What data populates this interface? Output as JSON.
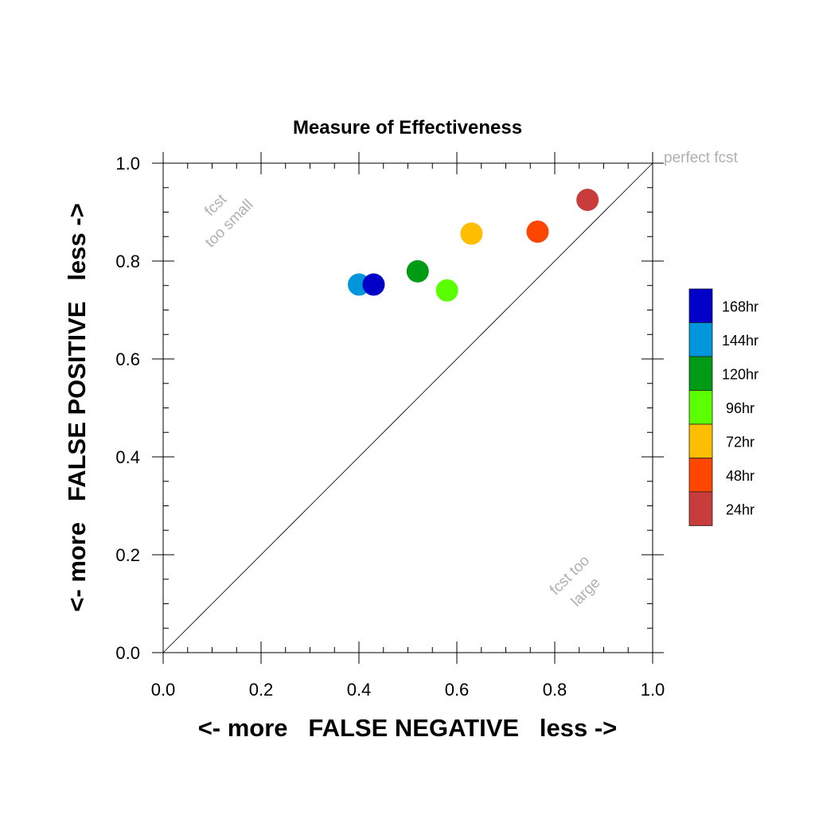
{
  "chart_data": {
    "type": "scatter",
    "title": "Measure of Effectiveness",
    "xlabel": "<- more   FALSE NEGATIVE   less ->",
    "ylabel": "<- more   FALSE POSITIVE   less ->",
    "xlim": [
      0.0,
      1.0
    ],
    "ylim": [
      0.0,
      1.0
    ],
    "x_ticks": [
      "0.0",
      "0.2",
      "0.4",
      "0.6",
      "0.8",
      "1.0"
    ],
    "y_ticks": [
      "0.0",
      "0.2",
      "0.4",
      "0.6",
      "0.8",
      "1.0"
    ],
    "grid": false,
    "diagonal_line": true,
    "annotations": {
      "top_left": [
        "fcst",
        "too small"
      ],
      "bottom_right": [
        "fcst too",
        "large"
      ],
      "top_right": "perfect fcst"
    },
    "legend_position": "right",
    "points": [
      {
        "label": "24hr",
        "x": 0.867,
        "y": 0.925,
        "color": "#c83c3c"
      },
      {
        "label": "48hr",
        "x": 0.765,
        "y": 0.86,
        "color": "#ff4600"
      },
      {
        "label": "72hr",
        "x": 0.63,
        "y": 0.856,
        "color": "#ffbe00"
      },
      {
        "label": "96hr",
        "x": 0.58,
        "y": 0.74,
        "color": "#5aff00"
      },
      {
        "label": "120hr",
        "x": 0.52,
        "y": 0.779,
        "color": "#009b14"
      },
      {
        "label": "144hr",
        "x": 0.4,
        "y": 0.752,
        "color": "#0096dc"
      },
      {
        "label": "168hr",
        "x": 0.43,
        "y": 0.752,
        "color": "#0000c8"
      }
    ],
    "legend": [
      {
        "label": "168hr",
        "color": "#0000c8"
      },
      {
        "label": "144hr",
        "color": "#0096dc"
      },
      {
        "label": "120hr",
        "color": "#009b14"
      },
      {
        "label": "96hr",
        "color": "#5aff00"
      },
      {
        "label": "72hr",
        "color": "#ffbe00"
      },
      {
        "label": "48hr",
        "color": "#ff4600"
      },
      {
        "label": "24hr",
        "color": "#c83c3c"
      }
    ]
  }
}
